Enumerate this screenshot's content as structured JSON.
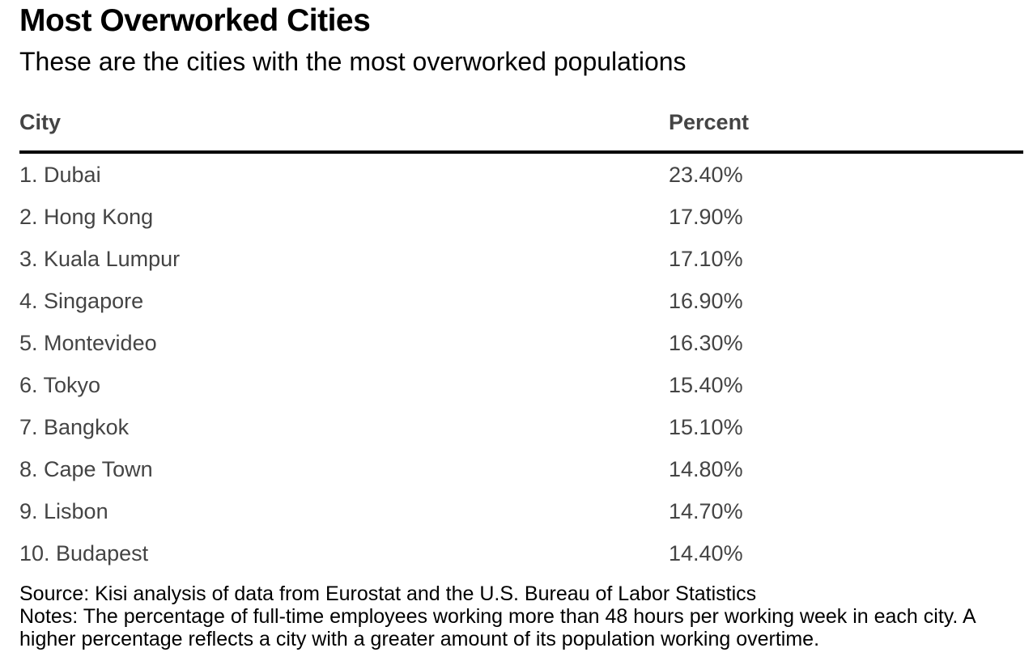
{
  "chart_data": {
    "type": "table",
    "title": "Most Overworked Cities",
    "subtitle": "These are the cities with the most overworked populations",
    "columns": [
      "City",
      "Percent"
    ],
    "rows": [
      [
        "1. Dubai",
        "23.40%"
      ],
      [
        "2. Hong Kong",
        "17.90%"
      ],
      [
        "3. Kuala Lumpur",
        "17.10%"
      ],
      [
        "4. Singapore",
        "16.90%"
      ],
      [
        "5. Montevideo",
        "16.30%"
      ],
      [
        "6. Tokyo",
        "15.40%"
      ],
      [
        "7. Bangkok",
        "15.10%"
      ],
      [
        "8. Cape Town",
        "14.80%"
      ],
      [
        "9. Lisbon",
        "14.70%"
      ],
      [
        "10. Budapest",
        "14.40%"
      ]
    ],
    "source": "Source: Kisi analysis of data from Eurostat and the U.S. Bureau of Labor Statistics",
    "notes": "Notes: The percentage of full-time employees working more than 48 hours per working week in each city. A higher percentage reflects a city with a greater amount of its population working overtime."
  },
  "colors": {
    "text": "#000000",
    "table_text": "#444444",
    "header_rule": "#000000"
  }
}
